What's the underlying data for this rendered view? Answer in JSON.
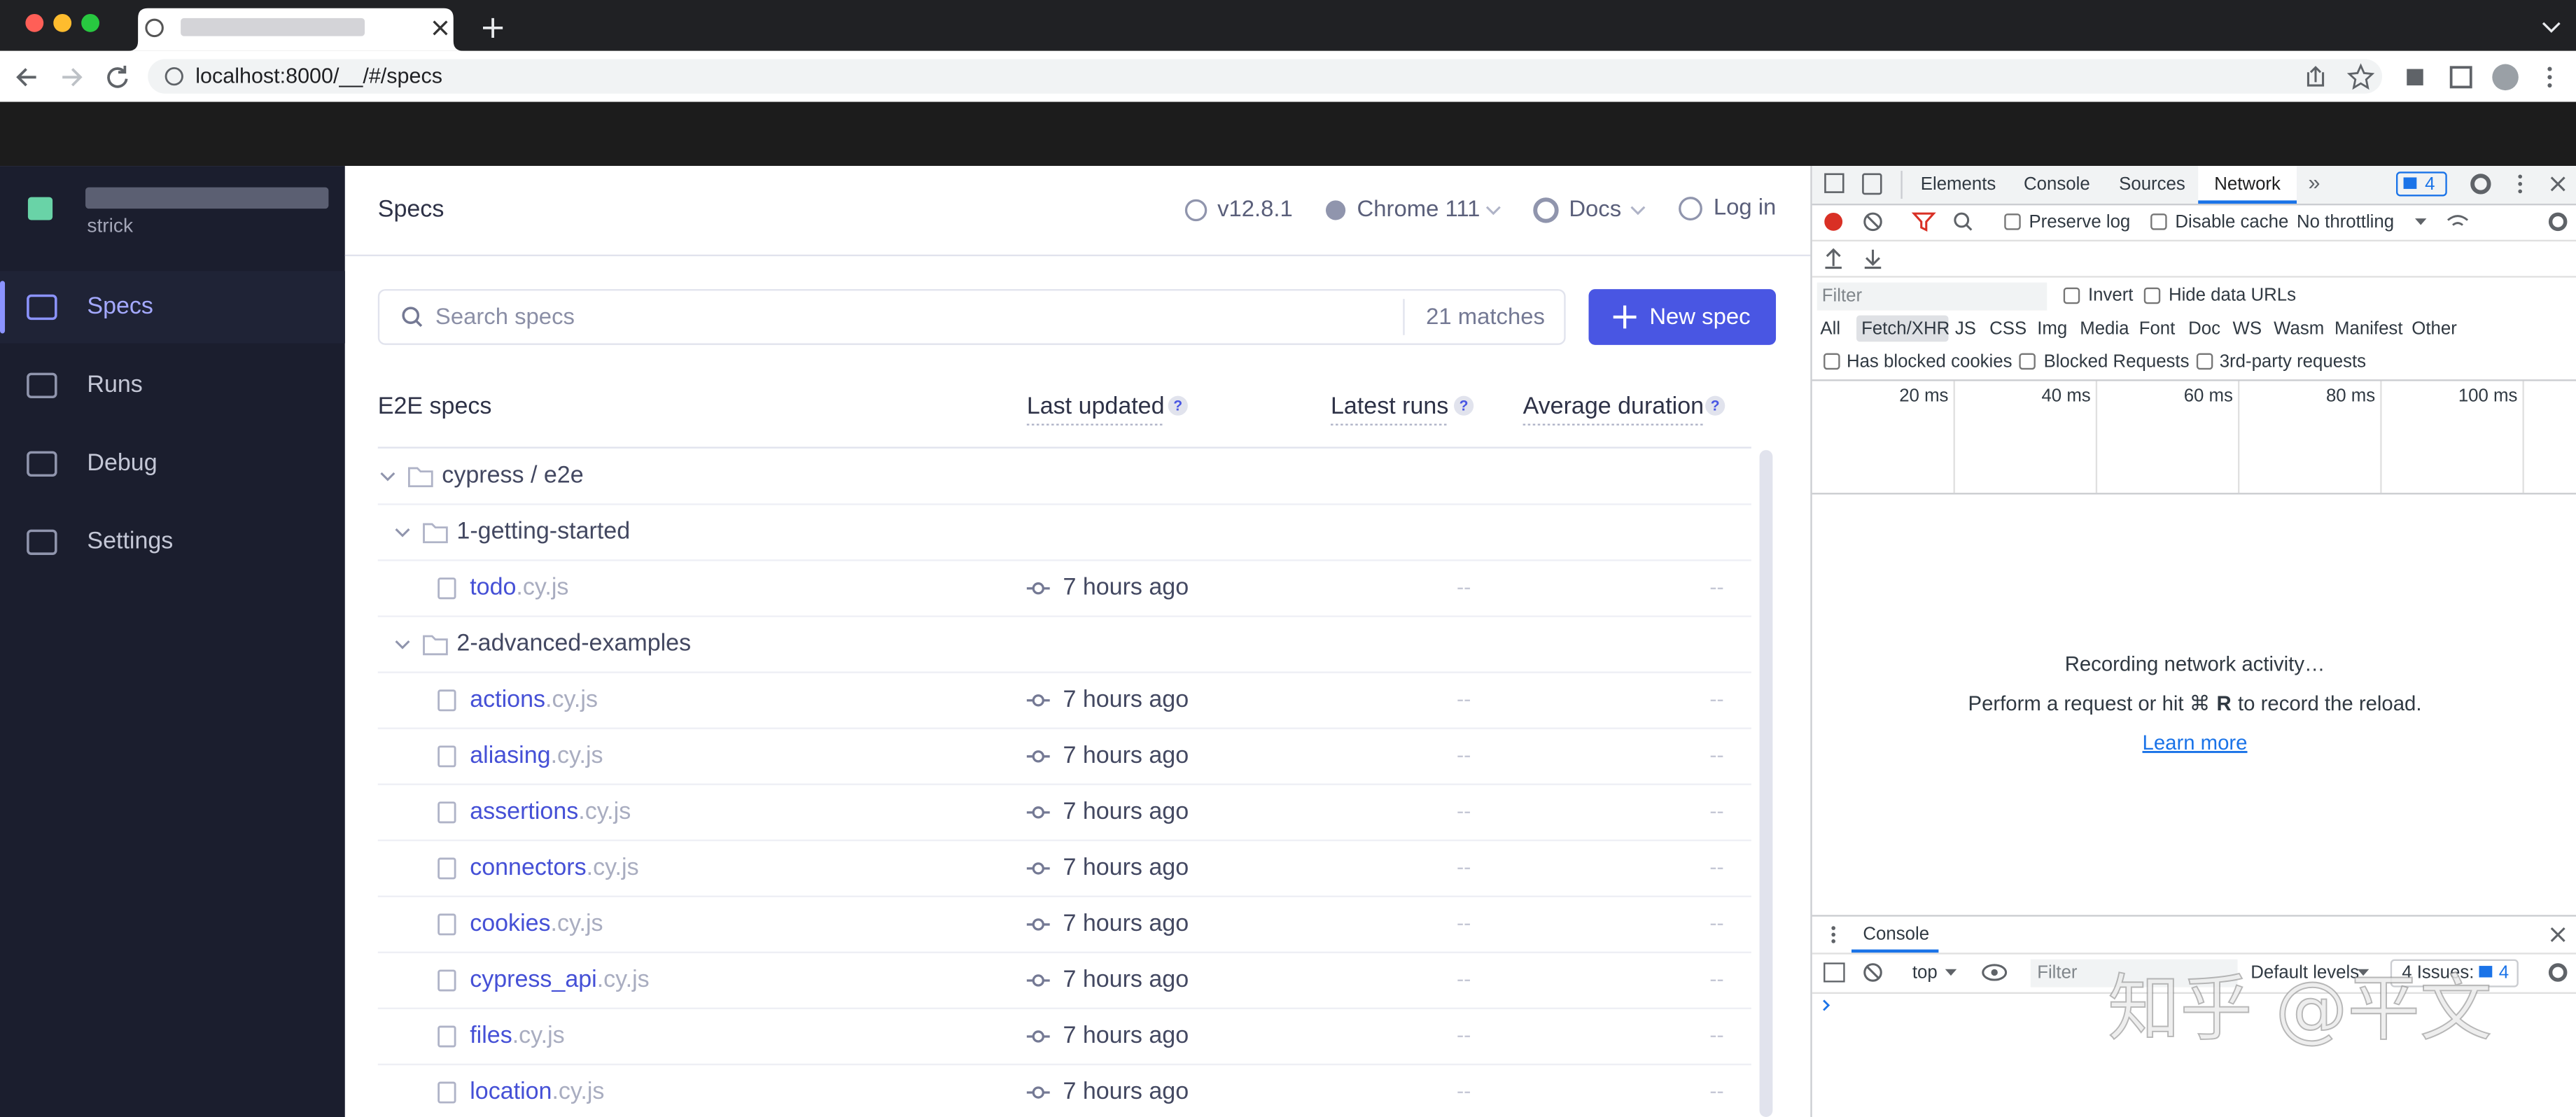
{
  "browser": {
    "url": "localhost:8000/__/#/specs"
  },
  "sidebar": {
    "branch": "strick",
    "nav": [
      "Specs",
      "Runs",
      "Debug",
      "Settings"
    ],
    "active": 0
  },
  "header": {
    "title": "Specs",
    "version": "v12.8.1",
    "browser": "Chrome 111",
    "docs": "Docs",
    "login": "Log in"
  },
  "search": {
    "placeholder": "Search specs",
    "matches": "21 matches",
    "new_spec": "New spec"
  },
  "table": {
    "columns": [
      "E2E specs",
      "Last updated",
      "Latest runs",
      "Average duration"
    ],
    "help": "?",
    "tree": {
      "name": "cypress / e2e",
      "folders": [
        {
          "name": "1-getting-started",
          "files": [
            {
              "name": "todo",
              "ext": ".cy.js",
              "updated": "7 hours ago",
              "runs": "--",
              "duration": "--"
            }
          ]
        },
        {
          "name": "2-advanced-examples",
          "files": [
            {
              "name": "actions",
              "ext": ".cy.js",
              "updated": "7 hours ago",
              "runs": "--",
              "duration": "--"
            },
            {
              "name": "aliasing",
              "ext": ".cy.js",
              "updated": "7 hours ago",
              "runs": "--",
              "duration": "--"
            },
            {
              "name": "assertions",
              "ext": ".cy.js",
              "updated": "7 hours ago",
              "runs": "--",
              "duration": "--"
            },
            {
              "name": "connectors",
              "ext": ".cy.js",
              "updated": "7 hours ago",
              "runs": "--",
              "duration": "--"
            },
            {
              "name": "cookies",
              "ext": ".cy.js",
              "updated": "7 hours ago",
              "runs": "--",
              "duration": "--"
            },
            {
              "name": "cypress_api",
              "ext": ".cy.js",
              "updated": "7 hours ago",
              "runs": "--",
              "duration": "--"
            },
            {
              "name": "files",
              "ext": ".cy.js",
              "updated": "7 hours ago",
              "runs": "--",
              "duration": "--"
            },
            {
              "name": "location",
              "ext": ".cy.js",
              "updated": "7 hours ago",
              "runs": "--",
              "duration": "--"
            }
          ]
        }
      ]
    }
  },
  "devtools": {
    "tabs": [
      "Elements",
      "Console",
      "Sources",
      "Network"
    ],
    "active_tab": 3,
    "issues": "4",
    "preserve_log": "Preserve log",
    "disable_cache": "Disable cache",
    "throttling": "No throttling",
    "filter": "Filter",
    "invert": "Invert",
    "hide_data_urls": "Hide data URLs",
    "types": [
      "All",
      "Fetch/XHR",
      "JS",
      "CSS",
      "Img",
      "Media",
      "Font",
      "Doc",
      "WS",
      "Wasm",
      "Manifest",
      "Other"
    ],
    "active_type": 1,
    "blocked_cookies": "Has blocked cookies",
    "blocked_requests": "Blocked Requests",
    "third_party": "3rd-party requests",
    "timeline": [
      "20 ms",
      "40 ms",
      "60 ms",
      "80 ms",
      "100 ms"
    ],
    "empty": {
      "title": "Recording network activity…",
      "hint_before": "Perform a request or hit ⌘",
      "hint_key": "R",
      "hint_after": "to record the reload.",
      "link": "Learn more"
    },
    "drawer": {
      "tab": "Console",
      "context": "top",
      "filter": "Filter",
      "levels": "Default levels",
      "issues_label": "4 Issues:",
      "issues_count": "4"
    }
  },
  "watermark": "知乎 @平文"
}
